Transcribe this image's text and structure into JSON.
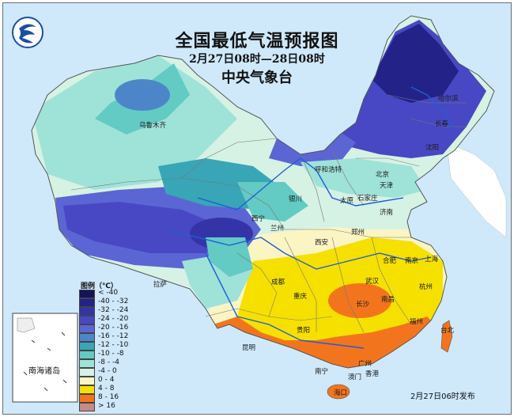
{
  "title": "全国最低气温预报图",
  "time_range": "2月27日08时—28日08时",
  "agency": "中央气象台",
  "issued": "2月27日06时发布",
  "inset_label": "南海诸岛",
  "legend": {
    "title": "图例（℃）",
    "items": [
      {
        "label": "< -40",
        "color": "#14145a"
      },
      {
        "label": "-40 - -32",
        "color": "#222288"
      },
      {
        "label": "-32 - -24",
        "color": "#3434a8"
      },
      {
        "label": "-24 - -20",
        "color": "#4848c4"
      },
      {
        "label": "-20 - -16",
        "color": "#5b66d4"
      },
      {
        "label": "-16 - -12",
        "color": "#4d86c8"
      },
      {
        "label": "-12 - -10",
        "color": "#38a6b6"
      },
      {
        "label": "-10 - -8",
        "color": "#63cac4"
      },
      {
        "label": "-8 - -4",
        "color": "#9fe2d8"
      },
      {
        "label": "-4 - 0",
        "color": "#d6f2e4"
      },
      {
        "label": "0 - 4",
        "color": "#fbf5c4"
      },
      {
        "label": "4 - 8",
        "color": "#f6e000"
      },
      {
        "label": "8 - 16",
        "color": "#f2751e"
      },
      {
        "label": "> 16",
        "color": "#c98a82"
      }
    ]
  },
  "cities": [
    {
      "name": "乌鲁木齐"
    },
    {
      "name": "哈尔滨"
    },
    {
      "name": "长春"
    },
    {
      "name": "沈阳"
    },
    {
      "name": "呼和浩特"
    },
    {
      "name": "北京"
    },
    {
      "name": "天津"
    },
    {
      "name": "银川"
    },
    {
      "name": "太原"
    },
    {
      "name": "石家庄"
    },
    {
      "name": "济南"
    },
    {
      "name": "西宁"
    },
    {
      "name": "兰州"
    },
    {
      "name": "郑州"
    },
    {
      "name": "西安"
    },
    {
      "name": "合肥"
    },
    {
      "name": "南京"
    },
    {
      "name": "上海"
    },
    {
      "name": "拉萨"
    },
    {
      "name": "成都"
    },
    {
      "name": "武汉"
    },
    {
      "name": "杭州"
    },
    {
      "name": "重庆"
    },
    {
      "name": "长沙"
    },
    {
      "name": "南昌"
    },
    {
      "name": "贵阳"
    },
    {
      "name": "福州"
    },
    {
      "name": "台北"
    },
    {
      "name": "昆明"
    },
    {
      "name": "南宁"
    },
    {
      "name": "广州"
    },
    {
      "name": "香港"
    },
    {
      "name": "澳门"
    },
    {
      "name": "海口"
    }
  ]
}
